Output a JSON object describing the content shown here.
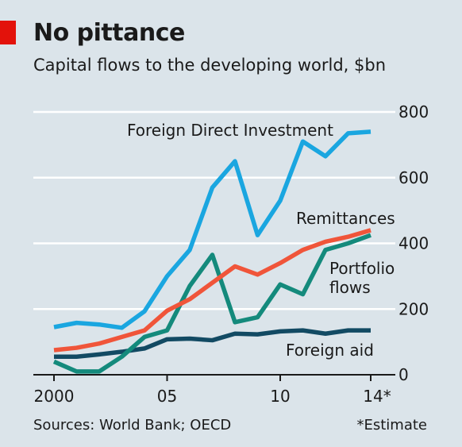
{
  "header": {
    "title": "No pittance",
    "subtitle": "Capital flows to the developing world, $bn"
  },
  "footer": {
    "source": "Sources: World Bank; OECD",
    "note": "*Estimate"
  },
  "colors": {
    "background": "#dbe4ea",
    "gridline": "#ffffff",
    "axis": "#1a1a1a",
    "fdi": "#1aa6e0",
    "remittances": "#f0553a",
    "portfolio": "#148a7c",
    "aid": "#124a63"
  },
  "chart_data": {
    "type": "line",
    "title": "No pittance",
    "subtitle": "Capital flows to the developing world, $bn",
    "x": [
      2000,
      2001,
      2002,
      2003,
      2004,
      2005,
      2006,
      2007,
      2008,
      2009,
      2010,
      2011,
      2012,
      2013,
      2014
    ],
    "xticks": [
      2000,
      2005,
      2010,
      2014
    ],
    "xtick_labels": [
      "2000",
      "05",
      "10",
      "14*"
    ],
    "xlim": [
      2000,
      2014
    ],
    "ylim": [
      0,
      800
    ],
    "yticks": [
      0,
      200,
      400,
      600,
      800
    ],
    "ytick_labels": [
      "0",
      "200",
      "400",
      "600",
      "800"
    ],
    "y_axis_side": "right",
    "grid": true,
    "legend": "direct labels",
    "series": [
      {
        "name": "Foreign Direct Investment",
        "color": "#1aa6e0",
        "values": [
          145,
          158,
          153,
          143,
          193,
          300,
          380,
          570,
          650,
          425,
          530,
          710,
          665,
          735,
          740
        ]
      },
      {
        "name": "Remittances",
        "color": "#f0553a",
        "values": [
          75,
          82,
          95,
          115,
          135,
          195,
          230,
          280,
          330,
          305,
          340,
          380,
          405,
          420,
          440
        ]
      },
      {
        "name": "Portfolio flows",
        "color": "#148a7c",
        "values": [
          40,
          10,
          10,
          55,
          115,
          135,
          270,
          365,
          160,
          175,
          275,
          245,
          380,
          400,
          425
        ]
      },
      {
        "name": "Foreign aid",
        "color": "#124a63",
        "values": [
          55,
          55,
          62,
          70,
          80,
          108,
          110,
          105,
          125,
          123,
          132,
          135,
          125,
          135,
          135
        ]
      }
    ],
    "series_labels": [
      {
        "text": "Foreign Direct Investment",
        "lines": [
          "Foreign Direct Investment"
        ]
      },
      {
        "text": "Remittances",
        "lines": [
          "Remittances"
        ]
      },
      {
        "text": "Portfolio flows",
        "lines": [
          "Portfolio",
          "flows"
        ]
      },
      {
        "text": "Foreign aid",
        "lines": [
          "Foreign aid"
        ]
      }
    ],
    "footer_left": "Sources: World Bank; OECD",
    "footer_right": "*Estimate"
  }
}
